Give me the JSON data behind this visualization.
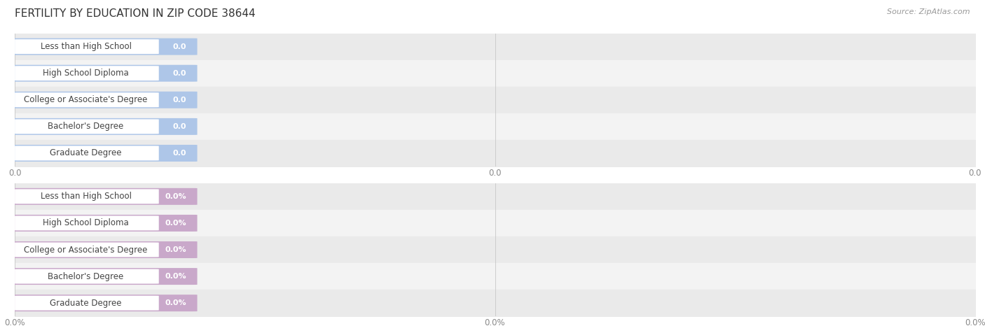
{
  "title": "FERTILITY BY EDUCATION IN ZIP CODE 38644",
  "source": "Source: ZipAtlas.com",
  "categories": [
    "Less than High School",
    "High School Diploma",
    "College or Associate's Degree",
    "Bachelor's Degree",
    "Graduate Degree"
  ],
  "top_values": [
    0.0,
    0.0,
    0.0,
    0.0,
    0.0
  ],
  "bottom_values": [
    0.0,
    0.0,
    0.0,
    0.0,
    0.0
  ],
  "top_bar_color": "#aec6e8",
  "top_bar_light": "#c5d9f0",
  "bottom_bar_color": "#c9a8ca",
  "bottom_bar_light": "#dbbddb",
  "row_colors": [
    "#eaeaea",
    "#f3f3f3"
  ],
  "xtick_labels_top": [
    "0.0",
    "0.0",
    "0.0"
  ],
  "xtick_labels_bottom": [
    "0.0%",
    "0.0%",
    "0.0%"
  ],
  "title_fontsize": 11,
  "source_fontsize": 8,
  "label_fontsize": 8.5,
  "value_fontsize": 8,
  "tick_fontsize": 8.5,
  "tick_color": "#888888"
}
